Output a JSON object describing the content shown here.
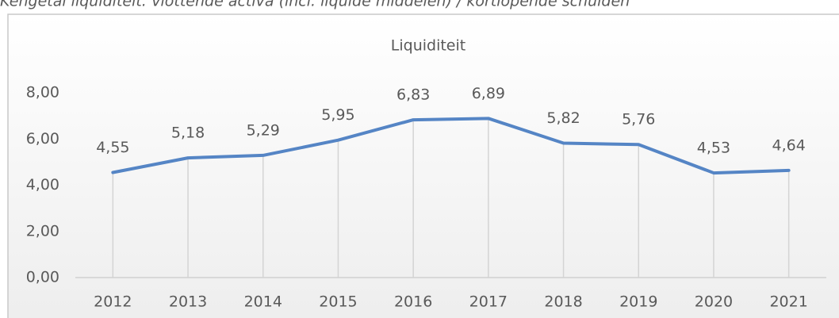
{
  "caption": "Kengetal liquiditeit: vlottende activa (incl. liquide middelen) / kortlopende schulden",
  "chart_data": {
    "type": "line",
    "title": "Liquiditeit",
    "categories": [
      "2012",
      "2013",
      "2014",
      "2015",
      "2016",
      "2017",
      "2018",
      "2019",
      "2020",
      "2021"
    ],
    "series": [
      {
        "name": "Liquiditeit",
        "color": "#5585c5",
        "values": [
          4.55,
          5.18,
          5.29,
          5.95,
          6.83,
          6.89,
          5.82,
          5.76,
          4.53,
          4.64
        ],
        "value_labels": [
          "4,55",
          "5,18",
          "5,29",
          "5,95",
          "6,83",
          "6,89",
          "5,82",
          "5,76",
          "4,53",
          "4,64"
        ]
      }
    ],
    "ylim": [
      0,
      8
    ],
    "yticks": [
      {
        "value": 0,
        "label": "0,00"
      },
      {
        "value": 2,
        "label": "2,00"
      },
      {
        "value": 4,
        "label": "4,00"
      },
      {
        "value": 6,
        "label": "6,00"
      },
      {
        "value": 8,
        "label": "8,00"
      }
    ],
    "drop_lines": true
  }
}
